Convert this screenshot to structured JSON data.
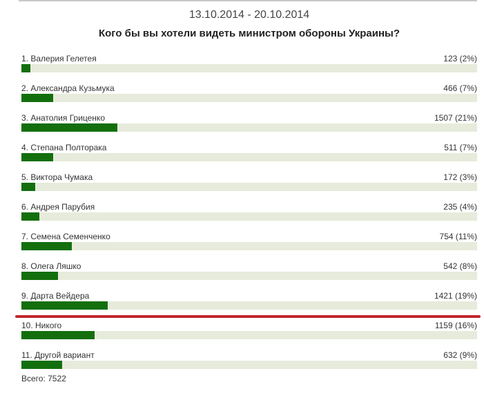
{
  "chart_data": {
    "type": "bar",
    "title": "Кого бы вы хотели видеть министром обороны Украины?",
    "subtitle": "13.10.2014 - 20.10.2014",
    "rows": [
      {
        "label": "1. Валерия Гелетея",
        "count_text": "123 (2%)",
        "value": 123,
        "percent": 2
      },
      {
        "label": "2. Александра Кузьмука",
        "count_text": "466 (7%)",
        "value": 466,
        "percent": 7
      },
      {
        "label": "3. Анатолия Гриценко",
        "count_text": "1507 (21%)",
        "value": 1507,
        "percent": 21
      },
      {
        "label": "4. Степана Полторака",
        "count_text": "511 (7%)",
        "value": 511,
        "percent": 7
      },
      {
        "label": "5. Виктора Чумака",
        "count_text": "172 (3%)",
        "value": 172,
        "percent": 3
      },
      {
        "label": "6. Андрея Парубия",
        "count_text": "235 (4%)",
        "value": 235,
        "percent": 4
      },
      {
        "label": "7. Семена Семенченко",
        "count_text": "754 (11%)",
        "value": 754,
        "percent": 11
      },
      {
        "label": "8. Олега Ляшко",
        "count_text": "542 (8%)",
        "value": 542,
        "percent": 8
      },
      {
        "label": "9. Дарта Вейдера",
        "count_text": "1421 (19%)",
        "value": 1421,
        "percent": 19
      },
      {
        "label": "10. Никого",
        "count_text": "1159 (16%)",
        "value": 1159,
        "percent": 16
      },
      {
        "label": "11. Другой вариант",
        "count_text": "632 (9%)",
        "value": 632,
        "percent": 9
      }
    ],
    "total_text": "Всего: 7522",
    "bar_color": "#136f0e",
    "track_color": "#e6ebdb",
    "highlight_line_color": "#c2262e"
  }
}
